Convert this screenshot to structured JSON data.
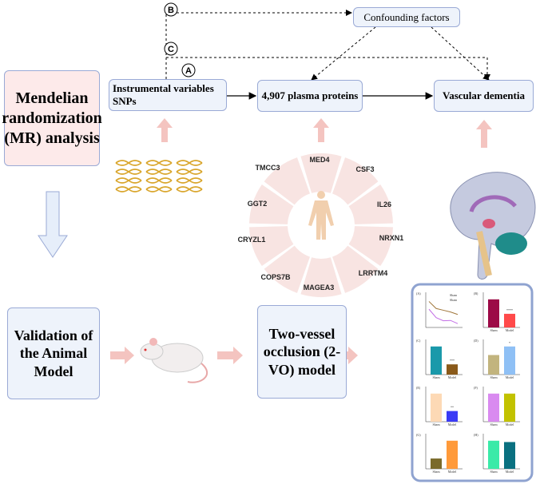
{
  "top": {
    "confounding": "Confounding factors",
    "instrumental_line1": "Instrumental variables",
    "instrumental_line2": "SNPs",
    "proteins": "4,907  plasma proteins",
    "outcome": "Vascular dementia",
    "path_labels": [
      "A",
      "B",
      "C"
    ]
  },
  "mr_box": "Mendelian randomization (MR) analysis",
  "validation_box": "Validation of the Animal Model",
  "model_box": "Two-vessel occlusion (2-VO) model",
  "proteins_wheel": [
    "MED4",
    "CSF3",
    "IL26",
    "NRXN1",
    "LRRTM4",
    "MAGEA3",
    "COPS7B",
    "CRYZL1",
    "GGT2",
    "TMCC3"
  ],
  "colors": {
    "box_fill": "#eef3fb",
    "box_border": "#9aaad6",
    "mr_fill": "#fdeaea",
    "arrow_pink": "#f4c4c0",
    "arrow_blue": "#dfe9f7",
    "wheel": "#f8e4e2"
  },
  "results_panel": {
    "panels": [
      {
        "label": "(A)",
        "type": "line",
        "series": [
          {
            "name": "Sham",
            "values": [
              74,
              54,
              49,
              44,
              37
            ],
            "color": "#a0763a"
          },
          {
            "name": "Sham",
            "values": [
              52,
              28,
              19,
              20,
              11
            ],
            "color": "#c36ee6"
          }
        ]
      },
      {
        "label": "(B)",
        "type": "bar",
        "values": [
          35,
          17
        ],
        "colors": [
          "#9c0a46",
          "#ff4a4a"
        ],
        "sig": "****"
      },
      {
        "label": "(C)",
        "type": "bar",
        "values": [
          5.5,
          2
        ],
        "colors": [
          "#1a99aa",
          "#8a5a1a"
        ],
        "sig": "***"
      },
      {
        "label": "(D)",
        "type": "bar",
        "values": [
          0.8,
          1.15
        ],
        "colors": [
          "#c2b47e",
          "#8fc0f5"
        ],
        "sig": "*"
      },
      {
        "label": "(E)",
        "type": "bar",
        "values": [
          2.9,
          1.1
        ],
        "colors": [
          "#fdd9b5",
          "#3b3bf5"
        ],
        "sig": "**"
      },
      {
        "label": "(F)",
        "type": "bar",
        "values": [
          1.0,
          1.0
        ],
        "colors": [
          "#d98af0",
          "#c2c200"
        ],
        "sig": ""
      },
      {
        "label": "(G)",
        "type": "bar",
        "values": [
          0.55,
          1.5
        ],
        "colors": [
          "#7a6a2a",
          "#ff9a3a"
        ],
        "sig": ""
      },
      {
        "label": "(H)",
        "type": "bar",
        "values": [
          1.05,
          1.0
        ],
        "colors": [
          "#3aeaa8",
          "#0a7080"
        ],
        "sig": ""
      }
    ],
    "categories": [
      "Sham",
      "Model"
    ]
  }
}
